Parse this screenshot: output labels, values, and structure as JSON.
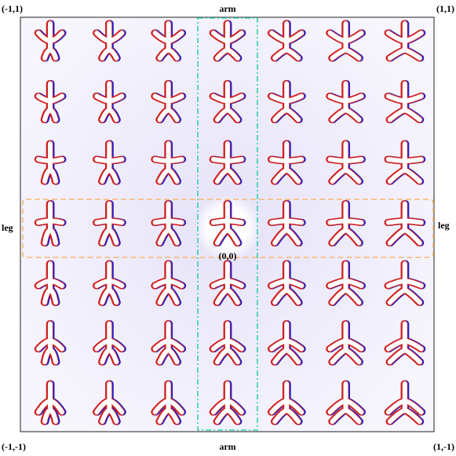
{
  "corners": {
    "top_left": "(-1,1)",
    "top_right": "(1,1)",
    "bottom_left": "(-1,-1)",
    "bottom_right": "(1,-1)"
  },
  "axes": {
    "top": "arm",
    "bottom": "arm",
    "left": "leg",
    "right": "leg"
  },
  "center": "(0,0)"
}
